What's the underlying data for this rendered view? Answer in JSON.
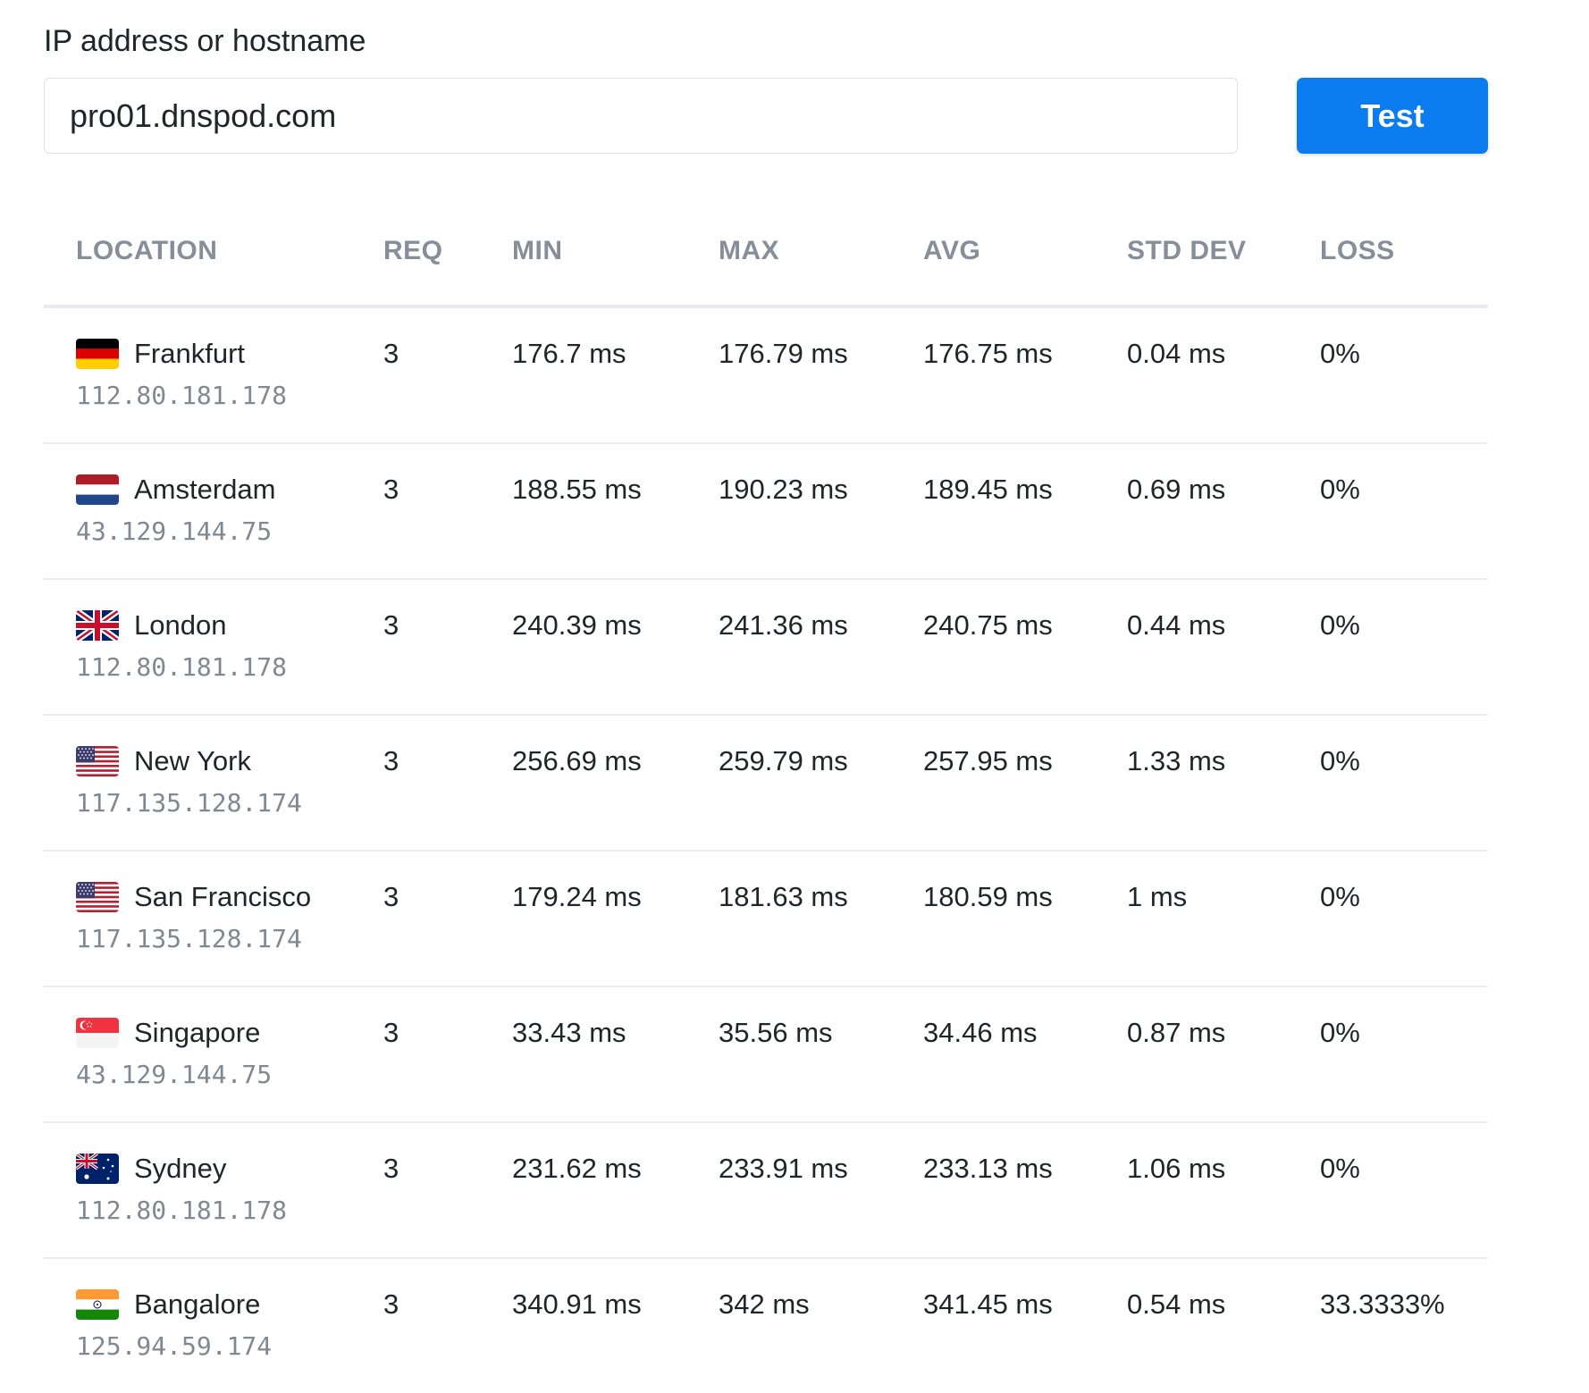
{
  "form": {
    "label": "IP address or hostname",
    "host_value": "pro01.dnspod.com",
    "test_label": "Test"
  },
  "table": {
    "headers": [
      "LOCATION",
      "REQ",
      "MIN",
      "MAX",
      "AVG",
      "STD DEV",
      "LOSS"
    ],
    "rows": [
      {
        "flag": "germany-flag-icon",
        "city": "Frankfurt",
        "ip": "112.80.181.178",
        "req": "3",
        "min": "176.7 ms",
        "max": "176.79 ms",
        "avg": "176.75 ms",
        "std": "0.04 ms",
        "loss": "0%"
      },
      {
        "flag": "netherlands-flag-icon",
        "city": "Amsterdam",
        "ip": "43.129.144.75",
        "req": "3",
        "min": "188.55 ms",
        "max": "190.23 ms",
        "avg": "189.45 ms",
        "std": "0.69 ms",
        "loss": "0%"
      },
      {
        "flag": "uk-flag-icon",
        "city": "London",
        "ip": "112.80.181.178",
        "req": "3",
        "min": "240.39 ms",
        "max": "241.36 ms",
        "avg": "240.75 ms",
        "std": "0.44 ms",
        "loss": "0%"
      },
      {
        "flag": "usa-flag-icon",
        "city": "New York",
        "ip": "117.135.128.174",
        "req": "3",
        "min": "256.69 ms",
        "max": "259.79 ms",
        "avg": "257.95 ms",
        "std": "1.33 ms",
        "loss": "0%"
      },
      {
        "flag": "usa-flag-icon",
        "city": "San Francisco",
        "ip": "117.135.128.174",
        "req": "3",
        "min": "179.24 ms",
        "max": "181.63 ms",
        "avg": "180.59 ms",
        "std": "1 ms",
        "loss": "0%"
      },
      {
        "flag": "singapore-flag-icon",
        "city": "Singapore",
        "ip": "43.129.144.75",
        "req": "3",
        "min": "33.43 ms",
        "max": "35.56 ms",
        "avg": "34.46 ms",
        "std": "0.87 ms",
        "loss": "0%"
      },
      {
        "flag": "australia-flag-icon",
        "city": "Sydney",
        "ip": "112.80.181.178",
        "req": "3",
        "min": "231.62 ms",
        "max": "233.91 ms",
        "avg": "233.13 ms",
        "std": "1.06 ms",
        "loss": "0%"
      },
      {
        "flag": "india-flag-icon",
        "city": "Bangalore",
        "ip": "125.94.59.174",
        "req": "3",
        "min": "340.91 ms",
        "max": "342 ms",
        "avg": "341.45 ms",
        "std": "0.54 ms",
        "loss": "33.3333%"
      }
    ]
  },
  "colors": {
    "accent": "#0a7cf0",
    "header_text": "#858e99",
    "ip_text": "#808891",
    "divider": "#e9ecef"
  }
}
